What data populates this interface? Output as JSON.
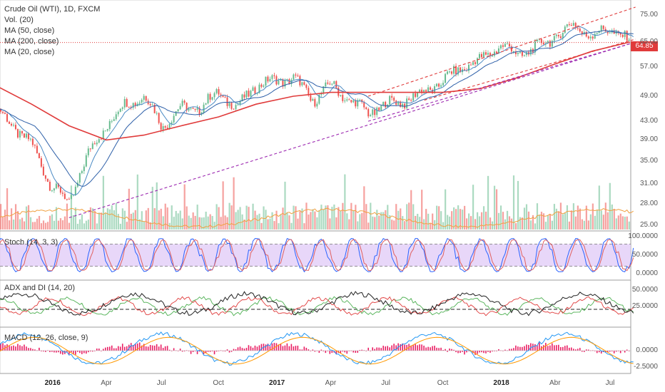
{
  "colors": {
    "bull": "#66bb8e",
    "bear": "#ef5350",
    "ma200": "#e03b3b",
    "ma50": "#2d5fa8",
    "ma20": "#4a8ac4",
    "vol_ma": "#f0a040",
    "channel": "#e03b3b",
    "trend": "#9c27b0",
    "stoch_k": "#2962ff",
    "stoch_d": "#e06060",
    "stoch_band": "#e2cdf7",
    "adx": "#222222",
    "di_plus": "#4caf50",
    "di_minus": "#e03b3b",
    "macd": "#2196f3",
    "signal": "#ff9800",
    "hist": "#e91e63"
  },
  "main": {
    "title": "Crude Oil (WTI), 1D, FXCM",
    "indicators": [
      "Vol. (20)",
      "MA (50, close)",
      "MA (200, close)",
      "MA (20, close)"
    ],
    "price_tag": "64.85",
    "y_ticks": [
      "75.00",
      "65.00",
      "57.00",
      "49.00",
      "43.00",
      "39.00",
      "35.00",
      "31.00",
      "28.00",
      "25.00"
    ]
  },
  "stoch": {
    "title": "Stoch (14, 3, 3)",
    "y_ticks": [
      "100.0000",
      "50.0000",
      "0.0000"
    ]
  },
  "adx": {
    "title": "ADX and DI (14, 20)",
    "y_ticks": [
      "50.0000",
      "25.0000"
    ]
  },
  "macd": {
    "title": "MACD (12, 26, close, 9)",
    "y_ticks": [
      "0.0000",
      "-2.5000"
    ]
  },
  "x_axis": {
    "labels": [
      {
        "text": "2016",
        "strong": true
      },
      {
        "text": "Apr",
        "strong": false
      },
      {
        "text": "Jul",
        "strong": false
      },
      {
        "text": "Oct",
        "strong": false
      },
      {
        "text": "2017",
        "strong": true
      },
      {
        "text": "Apr",
        "strong": false
      },
      {
        "text": "Jul",
        "strong": false
      },
      {
        "text": "Oct",
        "strong": false
      },
      {
        "text": "2018",
        "strong": true
      },
      {
        "text": "Abr",
        "strong": false
      },
      {
        "text": "Jul",
        "strong": false
      }
    ]
  },
  "chart_data": {
    "type": "line",
    "title": "Crude Oil (WTI), 1D, FXCM",
    "y_scale": "log",
    "ylim": [
      25,
      78
    ],
    "series": [
      {
        "name": "Crude Oil (WTI)",
        "x": [
          "2015-10",
          "2015-12",
          "2016-01",
          "2016-02",
          "2016-03",
          "2016-04",
          "2016-05",
          "2016-06",
          "2016-07",
          "2016-08",
          "2016-09",
          "2016-10",
          "2016-11",
          "2016-12",
          "2017-01",
          "2017-02",
          "2017-03",
          "2017-04",
          "2017-05",
          "2017-06",
          "2017-07",
          "2017-08",
          "2017-09",
          "2017-10",
          "2017-11",
          "2017-12",
          "2018-01",
          "2018-02",
          "2018-03",
          "2018-04",
          "2018-05",
          "2018-06",
          "2018-07",
          "2018-08"
        ],
        "values": [
          46,
          38,
          31,
          28,
          36,
          42,
          47,
          49,
          42,
          46,
          46,
          50,
          46,
          52,
          53,
          54,
          48,
          52,
          48,
          45,
          47,
          48,
          50,
          53,
          57,
          59,
          64,
          61,
          63,
          67,
          71,
          67,
          70,
          65
        ]
      },
      {
        "name": "MA (200, close)",
        "x": [
          "2015-10",
          "2015-12",
          "2016-02",
          "2016-04",
          "2016-06",
          "2016-08",
          "2016-10",
          "2016-12",
          "2017-02",
          "2017-04",
          "2017-06",
          "2017-08",
          "2017-10",
          "2017-12",
          "2018-02",
          "2018-04",
          "2018-06",
          "2018-08"
        ],
        "values": [
          52,
          47,
          42,
          39,
          40,
          42,
          44,
          47,
          49,
          50,
          50,
          50,
          50,
          51,
          54,
          58,
          62,
          65
        ]
      }
    ],
    "volume_ylim": [
      0,
      100
    ],
    "stoch_ylim": [
      0,
      100
    ],
    "adx_ylim": [
      0,
      60
    ],
    "macd_ylim": [
      -3,
      3
    ]
  }
}
